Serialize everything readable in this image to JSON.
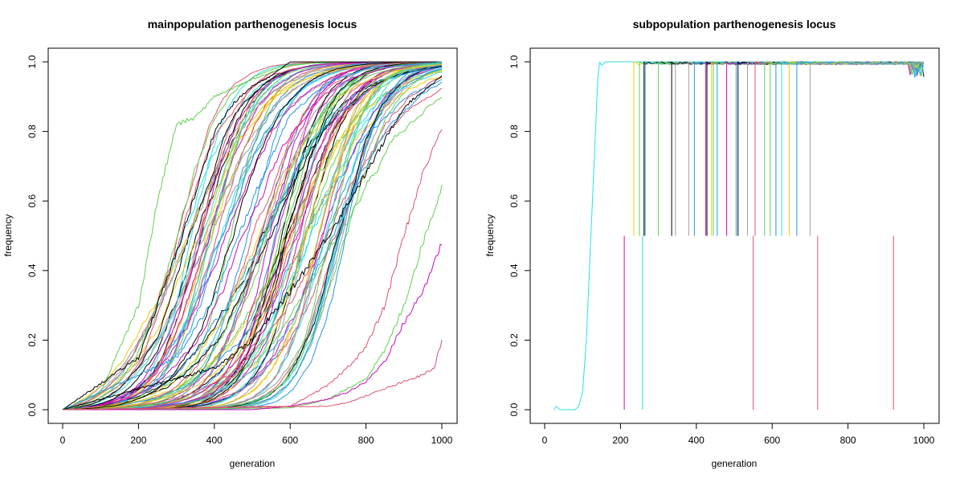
{
  "chart_data": [
    {
      "type": "line",
      "title": "mainpopulation parthenogenesis locus",
      "xlabel": "generation",
      "ylabel": "frequency",
      "xlim": [
        0,
        1000
      ],
      "ylim": [
        0,
        1
      ],
      "xticks": [
        "0",
        "200",
        "400",
        "600",
        "800",
        "1000"
      ],
      "yticks": [
        "0.0",
        "0.2",
        "0.4",
        "0.6",
        "0.8",
        "1.0"
      ],
      "grid": false,
      "legend": "none",
      "series_count": 100,
      "colors": [
        "#000000",
        "#DF536B",
        "#61D04F",
        "#2297E6",
        "#28E2E5",
        "#CD0BBC",
        "#F5C710",
        "#9E9E9E"
      ],
      "series_summary": [
        {
          "color": "#61D04F",
          "x": [
            0,
            100,
            200,
            250,
            300,
            350,
            400,
            500,
            600,
            700,
            800,
            900,
            1000
          ],
          "y": [
            0,
            0.05,
            0.3,
            0.6,
            0.82,
            0.84,
            0.9,
            0.95,
            0.99,
            1,
            1,
            1,
            1
          ]
        },
        {
          "color": "#000000",
          "x": [
            0,
            200,
            300,
            350,
            400,
            450,
            500,
            550,
            600,
            700,
            800,
            900,
            1000
          ],
          "y": [
            0,
            0.15,
            0.45,
            0.62,
            0.8,
            0.88,
            0.93,
            0.96,
            1,
            1,
            1,
            1,
            1
          ]
        },
        {
          "color": "#2297E6",
          "x": [
            0,
            300,
            400,
            500,
            600,
            700,
            800,
            900,
            1000
          ],
          "y": [
            0,
            0.15,
            0.32,
            0.6,
            0.85,
            0.94,
            0.98,
            0.99,
            1
          ]
        },
        {
          "color": "#000000",
          "x": [
            0,
            400,
            500,
            600,
            700,
            800,
            900,
            1000
          ],
          "y": [
            0,
            0.12,
            0.2,
            0.34,
            0.5,
            0.68,
            0.87,
            0.96
          ]
        },
        {
          "color": "#DF536B",
          "x": [
            0,
            600,
            700,
            750,
            800,
            850,
            900,
            950,
            1000
          ],
          "y": [
            0,
            0.01,
            0.07,
            0.12,
            0.18,
            0.3,
            0.5,
            0.68,
            0.81
          ]
        },
        {
          "color": "#61D04F",
          "x": [
            0,
            600,
            700,
            800,
            850,
            900,
            950,
            1000
          ],
          "y": [
            0,
            0.005,
            0.03,
            0.09,
            0.17,
            0.3,
            0.48,
            0.64
          ]
        },
        {
          "color": "#CD0BBC",
          "x": [
            0,
            500,
            600,
            700,
            750,
            800,
            850,
            900,
            950,
            1000
          ],
          "y": [
            0,
            0.0,
            0.01,
            0.03,
            0.05,
            0.08,
            0.14,
            0.25,
            0.34,
            0.48
          ]
        },
        {
          "color": "#DF536B",
          "x": [
            0,
            700,
            750,
            800,
            850,
            900,
            950,
            980,
            1000
          ],
          "y": [
            0,
            0.01,
            0.02,
            0.04,
            0.06,
            0.08,
            0.1,
            0.12,
            0.2
          ]
        }
      ]
    },
    {
      "type": "line",
      "title": "subpopulation parthenogenesis locus",
      "xlabel": "generation",
      "ylabel": "frequency",
      "xlim": [
        0,
        1000
      ],
      "ylim": [
        0,
        1
      ],
      "xticks": [
        "0",
        "200",
        "400",
        "600",
        "800",
        "1000"
      ],
      "yticks": [
        "0.0",
        "0.2",
        "0.4",
        "0.6",
        "0.8",
        "1.0"
      ],
      "grid": false,
      "legend": "none",
      "colors": [
        "#000000",
        "#DF536B",
        "#61D04F",
        "#2297E6",
        "#28E2E5",
        "#CD0BBC",
        "#F5C710",
        "#9E9E9E"
      ],
      "main_series": {
        "color": "#28E2E5",
        "x": [
          25,
          30,
          40,
          80,
          90,
          100,
          110,
          120,
          130,
          140,
          145,
          150,
          160,
          200,
          300,
          1000
        ],
        "y": [
          0,
          0.01,
          0,
          0,
          0.01,
          0.05,
          0.2,
          0.45,
          0.7,
          0.95,
          1,
          0.99,
          1,
          1,
          1,
          1
        ]
      },
      "late_invasions_to_one": [
        {
          "x": 235,
          "color": "#F5C710"
        },
        {
          "x": 250,
          "color": "#61D04F"
        },
        {
          "x": 262,
          "color": "#000000"
        },
        {
          "x": 265,
          "color": "#2297E6"
        },
        {
          "x": 300,
          "color": "#61D04F"
        },
        {
          "x": 335,
          "color": "#000000"
        },
        {
          "x": 345,
          "color": "#9E9E9E"
        },
        {
          "x": 380,
          "color": "#9E9E9E"
        },
        {
          "x": 395,
          "color": "#2297E6"
        },
        {
          "x": 425,
          "color": "#CD0BBC"
        },
        {
          "x": 428,
          "color": "#000000"
        },
        {
          "x": 440,
          "color": "#F5C710"
        },
        {
          "x": 445,
          "color": "#61D04F"
        },
        {
          "x": 455,
          "color": "#2297E6"
        },
        {
          "x": 480,
          "color": "#CD0BBC"
        },
        {
          "x": 505,
          "color": "#2297E6"
        },
        {
          "x": 510,
          "color": "#000000"
        },
        {
          "x": 535,
          "color": "#9E9E9E"
        },
        {
          "x": 555,
          "color": "#DF536B"
        },
        {
          "x": 580,
          "color": "#61D04F"
        },
        {
          "x": 595,
          "color": "#61D04F"
        },
        {
          "x": 610,
          "color": "#2297E6"
        },
        {
          "x": 625,
          "color": "#28E2E5"
        },
        {
          "x": 645,
          "color": "#F5C710"
        },
        {
          "x": 665,
          "color": "#2297E6"
        },
        {
          "x": 700,
          "color": "#9E9E9E"
        }
      ],
      "spikes_to_half": [
        {
          "x": 210,
          "color": "#CD0BBC"
        },
        {
          "x": 258,
          "color": "#28E2E5"
        },
        {
          "x": 550,
          "color": "#DF536B"
        },
        {
          "x": 720,
          "color": "#DF536B"
        },
        {
          "x": 920,
          "color": "#DF536B"
        }
      ]
    }
  ]
}
